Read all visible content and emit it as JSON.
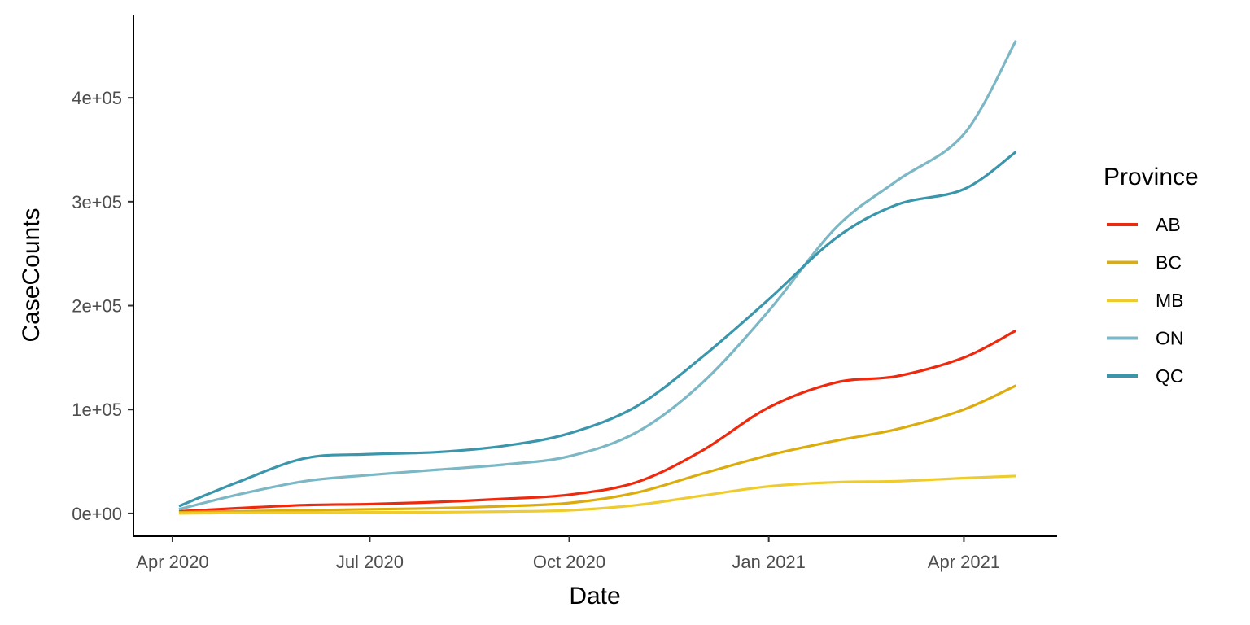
{
  "chart_data": {
    "type": "line",
    "xlabel": "Date",
    "ylabel": "CaseCounts",
    "x_axis_type": "date",
    "xlim": [
      "2020-03-14",
      "2021-05-14"
    ],
    "ylim": [
      -22000,
      480000
    ],
    "x_ticks": [
      {
        "date": "2020-04-01",
        "label": "Apr 2020"
      },
      {
        "date": "2020-07-01",
        "label": "Jul 2020"
      },
      {
        "date": "2020-10-01",
        "label": "Oct 2020"
      },
      {
        "date": "2021-01-01",
        "label": "Jan 2021"
      },
      {
        "date": "2021-04-01",
        "label": "Apr 2021"
      }
    ],
    "y_ticks": [
      {
        "value": 0,
        "label": "0e+00"
      },
      {
        "value": 100000,
        "label": "1e+05"
      },
      {
        "value": 200000,
        "label": "2e+05"
      },
      {
        "value": 300000,
        "label": "3e+05"
      },
      {
        "value": 400000,
        "label": "4e+05"
      }
    ],
    "grid": false,
    "legend": {
      "title": "Province",
      "position": "right"
    },
    "x": [
      "2020-04-04",
      "2020-05-01",
      "2020-06-01",
      "2020-07-01",
      "2020-08-01",
      "2020-09-01",
      "2020-10-01",
      "2020-11-01",
      "2020-12-01",
      "2021-01-01",
      "2021-02-01",
      "2021-03-01",
      "2021-04-01",
      "2021-04-25"
    ],
    "series": [
      {
        "name": "AB",
        "color": "#EE2A0E",
        "values": [
          2000,
          5000,
          8000,
          9000,
          11000,
          14000,
          18000,
          30000,
          60000,
          102000,
          126000,
          132000,
          150000,
          176000
        ]
      },
      {
        "name": "BC",
        "color": "#DBAC0C",
        "values": [
          1000,
          2000,
          3000,
          4000,
          5000,
          7000,
          10000,
          20000,
          38000,
          56000,
          70000,
          81000,
          100000,
          123000
        ]
      },
      {
        "name": "MB",
        "color": "#EECC2F",
        "values": [
          0,
          500,
          800,
          1000,
          1200,
          1800,
          3000,
          8000,
          17000,
          26000,
          30000,
          31000,
          34000,
          36000
        ]
      },
      {
        "name": "ON",
        "color": "#7BB7C4",
        "values": [
          4000,
          18000,
          31000,
          37000,
          42000,
          47000,
          55000,
          78000,
          125000,
          195000,
          275000,
          320000,
          365000,
          455000
        ]
      },
      {
        "name": "QC",
        "color": "#3B96AC",
        "values": [
          7000,
          30000,
          53000,
          57000,
          59000,
          65000,
          77000,
          103000,
          150000,
          206000,
          265000,
          297000,
          312000,
          348000
        ]
      }
    ]
  }
}
